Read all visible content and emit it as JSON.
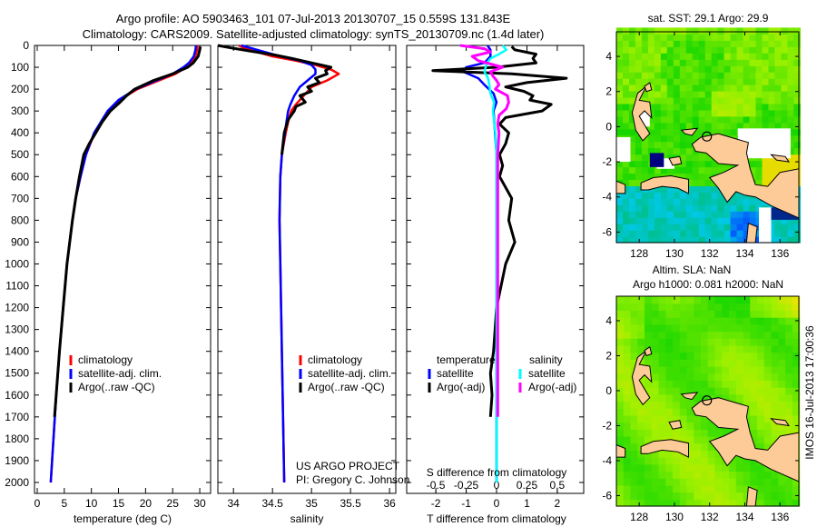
{
  "title": {
    "line1": "Argo profile: AO 5903463_101 07-Jul-2013 20130707_15 0.559S 131.843E",
    "line2": "Climatology: CARS2009. Satellite-adjusted climatology: synTS_20130709.nc (1.4d later)"
  },
  "colors": {
    "climatology": "#ff0000",
    "satellite": "#0000ff",
    "argo": "#000000",
    "sal_satellite": "#00ffff",
    "sal_argo": "#ff00ff",
    "land": "#fdcb98"
  },
  "credit": {
    "line1": "US ARGO PROJECT",
    "line2": "PI: Gregory C. Johnson"
  },
  "imos_stamp": "IMOS 16-Jul-2013 17:00:36",
  "chart_data": [
    {
      "id": "temperature",
      "type": "line",
      "xlabel": "temperature (deg C)",
      "ylabel": "",
      "xlim": [
        -0.5,
        32
      ],
      "ylim": [
        2050,
        0
      ],
      "xticks": [
        0,
        5,
        10,
        15,
        20,
        25,
        30
      ],
      "yticks": [
        0,
        100,
        200,
        300,
        400,
        500,
        600,
        700,
        800,
        900,
        1000,
        1100,
        1200,
        1300,
        1400,
        1500,
        1600,
        1700,
        1800,
        1900,
        2000
      ],
      "legend": [
        "climatology",
        "satellite-adj. clim.",
        "Argo(..raw -QC)"
      ],
      "series": [
        {
          "name": "climatology",
          "color": "#ff0000",
          "depth": [
            0,
            20,
            50,
            80,
            100,
            130,
            160,
            200,
            250,
            300,
            400,
            500,
            600,
            700,
            800,
            1000,
            1200,
            1400,
            1600,
            1800,
            2000
          ],
          "values": [
            29.6,
            29.5,
            29.2,
            28.3,
            27.5,
            25.5,
            22.5,
            18.5,
            15.2,
            13.2,
            10.6,
            9.0,
            8.0,
            7.1,
            6.5,
            5.5,
            4.8,
            4.1,
            3.5,
            3.0,
            2.5
          ]
        },
        {
          "name": "satellite-adj. clim.",
          "color": "#0000ff",
          "depth": [
            0,
            20,
            50,
            80,
            100,
            130,
            160,
            200,
            250,
            300,
            400,
            500,
            600,
            700,
            800,
            1000,
            1200,
            1400,
            1600,
            1800,
            2000
          ],
          "values": [
            29.3,
            29.2,
            28.9,
            28.0,
            27.0,
            25.0,
            22.0,
            18.2,
            15.0,
            13.0,
            10.5,
            9.0,
            8.0,
            7.1,
            6.5,
            5.5,
            4.8,
            4.1,
            3.5,
            3.0,
            2.5
          ]
        },
        {
          "name": "Argo(..raw -QC)",
          "color": "#000000",
          "depth": [
            5,
            20,
            50,
            80,
            100,
            130,
            160,
            200,
            230,
            260,
            300,
            350,
            400,
            450,
            500,
            600,
            700,
            800,
            1000,
            1200,
            1400,
            1600,
            1700
          ],
          "values": [
            30.1,
            30.0,
            29.7,
            28.8,
            27.8,
            25.0,
            21.5,
            18.0,
            16.5,
            15.3,
            13.5,
            12.0,
            10.8,
            9.6,
            8.6,
            7.8,
            7.1,
            6.5,
            5.5,
            4.8,
            4.1,
            3.5,
            3.2
          ]
        }
      ]
    },
    {
      "id": "salinity",
      "type": "line",
      "xlabel": "salinity",
      "ylabel": "",
      "xlim": [
        33.8,
        36.08
      ],
      "ylim": [
        2050,
        0
      ],
      "xticks": [
        34,
        34.5,
        35,
        35.5,
        36
      ],
      "legend": [
        "climatology",
        "satellite-adj. clim.",
        "Argo(..raw -QC)"
      ],
      "series": [
        {
          "name": "climatology",
          "color": "#ff0000",
          "depth": [
            0,
            15,
            30,
            50,
            70,
            90,
            110,
            130,
            160,
            190,
            230,
            270,
            300,
            350,
            400,
            500,
            600,
            800,
            1000,
            1400,
            2000
          ],
          "values": [
            34.07,
            34.15,
            34.3,
            34.5,
            34.8,
            35.05,
            35.25,
            35.35,
            35.2,
            35.0,
            34.9,
            34.8,
            34.74,
            34.7,
            34.67,
            34.62,
            34.6,
            34.59,
            34.6,
            34.62,
            34.65
          ]
        },
        {
          "name": "satellite-adj. clim.",
          "color": "#0000ff",
          "depth": [
            0,
            15,
            30,
            50,
            70,
            90,
            110,
            130,
            160,
            190,
            230,
            270,
            300,
            350,
            400,
            500,
            600,
            800,
            1000,
            1400,
            2000
          ],
          "values": [
            34.1,
            34.25,
            34.4,
            34.6,
            34.85,
            35.0,
            35.05,
            35.05,
            34.95,
            34.85,
            34.78,
            34.73,
            34.7,
            34.68,
            34.66,
            34.62,
            34.6,
            34.59,
            34.6,
            34.62,
            34.65
          ]
        },
        {
          "name": "Argo(..raw -QC)",
          "color": "#000000",
          "depth": [
            0,
            10,
            25,
            45,
            60,
            80,
            100,
            115,
            130,
            150,
            170,
            190,
            210,
            230,
            260,
            280,
            300,
            340,
            400,
            500
          ],
          "values": [
            33.8,
            33.95,
            34.2,
            34.55,
            34.75,
            35.0,
            35.25,
            35.18,
            35.2,
            35.05,
            35.1,
            34.95,
            35.0,
            34.85,
            34.92,
            34.8,
            34.78,
            34.7,
            34.65,
            34.62
          ]
        }
      ]
    },
    {
      "id": "differences",
      "type": "line",
      "xlabel": "T difference from climatology",
      "xlabel2": "S difference from climatology",
      "xlim": [
        -2.96,
        2.87
      ],
      "ylim": [
        2050,
        0
      ],
      "xticks": [
        -2,
        -1,
        0,
        1,
        2
      ],
      "xticks2": [
        -0.5,
        -0.25,
        0,
        0.25,
        0.5
      ],
      "xticks2_labels": [
        "-0.5",
        "-0.25",
        "0",
        "0.25",
        "0.5"
      ],
      "legend_temperature": {
        "title": "temperature",
        "items": [
          "satellite",
          "Argo(-adj)"
        ]
      },
      "legend_salinity": {
        "title": "salinity",
        "items": [
          "satellite",
          "Argo(-adj)"
        ]
      },
      "series": [
        {
          "name": "temperature satellite",
          "color": "#0000ff",
          "scale": "T",
          "depth": [
            0,
            20,
            50,
            80,
            100,
            120,
            150,
            180,
            220,
            260,
            300,
            400,
            500,
            700,
            1000,
            1400,
            2000
          ],
          "values": [
            -0.3,
            -0.2,
            -0.2,
            -0.4,
            -1.0,
            -1.1,
            -0.6,
            -0.4,
            -0.1,
            0,
            -0.1,
            -0.05,
            0,
            0,
            0,
            0,
            0
          ]
        },
        {
          "name": "temperature Argo(-adj)",
          "color": "#000000",
          "scale": "T",
          "depth": [
            5,
            20,
            40,
            60,
            80,
            100,
            115,
            130,
            150,
            170,
            190,
            210,
            230,
            250,
            270,
            300,
            330,
            360,
            400,
            450,
            500,
            550,
            600,
            700,
            800,
            900,
            1000,
            1200,
            1400,
            1500,
            1600,
            1700
          ],
          "values": [
            0.5,
            0.6,
            1.3,
            1.2,
            1.3,
            0.0,
            -2.1,
            0.5,
            2.3,
            1.0,
            0.3,
            0.9,
            1.2,
            1.1,
            1.8,
            1.5,
            0.3,
            0.1,
            0.4,
            0.3,
            0.1,
            0.2,
            0.1,
            0.5,
            0.4,
            0.6,
            0.3,
            0.0,
            -0.1,
            -0.2,
            -0.15,
            -0.2
          ]
        },
        {
          "name": "salinity satellite",
          "color": "#00ffff",
          "scale": "S",
          "depth": [
            0,
            20,
            40,
            60,
            80,
            100,
            120,
            150,
            180,
            220,
            260,
            300,
            400,
            500,
            700,
            1000,
            1400,
            2000
          ],
          "values": [
            0.05,
            0.08,
            0.02,
            -0.05,
            -0.08,
            -0.09,
            -0.1,
            -0.07,
            -0.06,
            -0.05,
            -0.02,
            -0.03,
            -0.01,
            0,
            0,
            0,
            0,
            0
          ]
        },
        {
          "name": "salinity Argo(-adj)",
          "color": "#ff00ff",
          "scale": "S",
          "depth": [
            0,
            15,
            30,
            50,
            70,
            100,
            120,
            140,
            160,
            180,
            200,
            230,
            260,
            290,
            320,
            360,
            400,
            500,
            700,
            1000,
            1400,
            1700
          ],
          "values": [
            -0.3,
            -0.1,
            -0.05,
            -0.2,
            -0.15,
            0.05,
            -0.05,
            -0.03,
            0.0,
            0.02,
            -0.01,
            0.09,
            0.1,
            0.08,
            0.02,
            0.01,
            0.02,
            0.01,
            0.01,
            0.01,
            0.01,
            0.01
          ]
        }
      ]
    },
    {
      "id": "sst_map",
      "type": "heatmap",
      "title": "sat. SST: 29.1 Argo: 29.9",
      "xlim": [
        126.7,
        137.07
      ],
      "ylim": [
        -6.6,
        5.4
      ],
      "xticks": [
        128,
        130,
        132,
        134,
        136
      ],
      "yticks": [
        4,
        2,
        0,
        -2,
        -4,
        -6
      ],
      "argo_position": {
        "lon": 131.843,
        "lat": -0.559
      }
    },
    {
      "id": "sla_map",
      "type": "heatmap",
      "title": "Altim. SLA: NaN",
      "subtitle": "Argo h1000: 0.081 h2000: NaN",
      "xlim": [
        126.7,
        137.07
      ],
      "ylim": [
        -6.6,
        5.4
      ],
      "xticks": [
        128,
        130,
        132,
        134,
        136
      ],
      "yticks": [
        4,
        2,
        0,
        -2,
        -4,
        -6
      ],
      "argo_position": {
        "lon": 131.843,
        "lat": -0.559
      }
    }
  ]
}
